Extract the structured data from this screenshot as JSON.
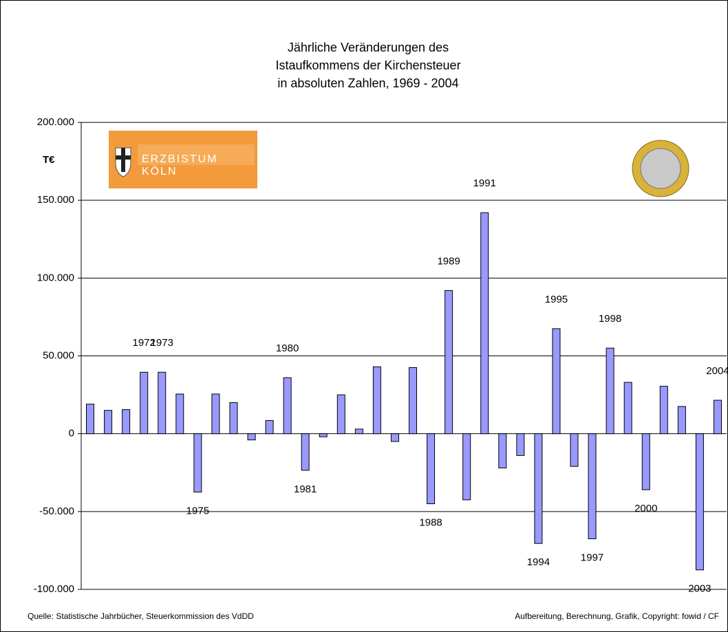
{
  "chart_data": {
    "type": "bar",
    "title": [
      "Jährliche Veränderungen des",
      "Istaufkommens der Kirchensteuer",
      "in absoluten Zahlen, 1969 - 2004"
    ],
    "ylabel": "T€",
    "logo": [
      "ERZBISTUM",
      "KÖLN"
    ],
    "categories": [
      null,
      null,
      null,
      "1972",
      "1973",
      null,
      "1975",
      null,
      null,
      null,
      null,
      "1980",
      "1981",
      null,
      null,
      null,
      null,
      null,
      null,
      "1988",
      "1989",
      null,
      "1991",
      null,
      null,
      "1994",
      "1995",
      null,
      "1997",
      "1998",
      null,
      "2000",
      null,
      null,
      "2003",
      "2004"
    ],
    "values": [
      19000,
      15000,
      15500,
      39500,
      39500,
      25500,
      -37500,
      25500,
      20000,
      -4000,
      8500,
      36000,
      -23500,
      -2000,
      25000,
      3000,
      43000,
      -5000,
      42500,
      -45000,
      92000,
      -42500,
      142000,
      -22000,
      -14000,
      -70500,
      67500,
      -21000,
      -67500,
      55000,
      33000,
      -36000,
      30500,
      17500,
      -87500,
      21500
    ],
    "color": "#9999ff",
    "ylim": [
      -100000,
      200000
    ],
    "yticks": [
      {
        "value": -100000,
        "label": "-100.000"
      },
      {
        "value": -50000,
        "label": "-50.000"
      },
      0,
      {
        "value": 50000,
        "label": "50.000"
      },
      {
        "value": 100000,
        "label": "100.000"
      },
      {
        "value": 150000,
        "label": "150.000"
      },
      {
        "value": 200000,
        "label": "200.000"
      }
    ],
    "grid": true,
    "source": "Quelle: Statistische Jahrbücher, Steuerkommission des VdDD",
    "credit": "Aufbereitung, Berechnung, Grafik, Copyright: fowid / CF"
  }
}
